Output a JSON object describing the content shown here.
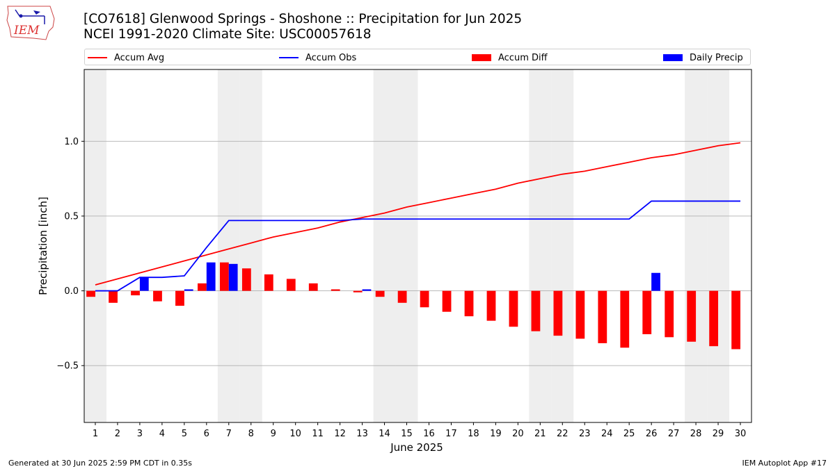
{
  "header": {
    "title_line1": "[CO7618] Glenwood Springs - Shoshone :: Precipitation for Jun 2025",
    "title_line2": "NCEI 1991-2020 Climate Site: USC00057618",
    "logo_text": "IEM"
  },
  "footer": {
    "generated": "Generated at 30 Jun 2025 2:59 PM CDT in 0.35s",
    "app": "IEM Autoplot App #17"
  },
  "colors": {
    "accum_avg": "#ff0000",
    "accum_obs": "#0000ff",
    "accum_diff": "#ff0000",
    "daily_precip": "#0000ff",
    "weekend_shade": "#eeeeee",
    "grid": "#b0b0b0"
  },
  "chart_data": {
    "type": "bar",
    "xlabel": "June 2025",
    "ylabel": "Precipitation [inch]",
    "ylim": [
      -0.88,
      1.48
    ],
    "yticks": [
      -0.5,
      0.0,
      0.5,
      1.0
    ],
    "ytick_labels": [
      "−0.5",
      "0.0",
      "0.5",
      "1.0"
    ],
    "grid": "horizontal",
    "legend_placement": "top, above plot",
    "x": [
      1,
      2,
      3,
      4,
      5,
      6,
      7,
      8,
      9,
      10,
      11,
      12,
      13,
      14,
      15,
      16,
      17,
      18,
      19,
      20,
      21,
      22,
      23,
      24,
      25,
      26,
      27,
      28,
      29,
      30
    ],
    "weekend_days": [
      1,
      7,
      8,
      14,
      15,
      21,
      22,
      28,
      29
    ],
    "series": [
      {
        "name": "Accum Avg",
        "kind": "line",
        "values": [
          0.04,
          0.08,
          0.12,
          0.16,
          0.2,
          0.24,
          0.28,
          0.32,
          0.36,
          0.39,
          0.42,
          0.46,
          0.49,
          0.52,
          0.56,
          0.59,
          0.62,
          0.65,
          0.68,
          0.72,
          0.75,
          0.78,
          0.8,
          0.83,
          0.86,
          0.89,
          0.91,
          0.94,
          0.97,
          0.99
        ]
      },
      {
        "name": "Accum Obs",
        "kind": "line",
        "values": [
          0.0,
          0.0,
          0.09,
          0.09,
          0.1,
          0.29,
          0.47,
          0.47,
          0.47,
          0.47,
          0.47,
          0.47,
          0.48,
          0.48,
          0.48,
          0.48,
          0.48,
          0.48,
          0.48,
          0.48,
          0.48,
          0.48,
          0.48,
          0.48,
          0.48,
          0.6,
          0.6,
          0.6,
          0.6,
          0.6
        ]
      },
      {
        "name": "Accum Diff",
        "kind": "bar",
        "values": [
          -0.04,
          -0.08,
          -0.03,
          -0.07,
          -0.1,
          0.05,
          0.19,
          0.15,
          0.11,
          0.08,
          0.05,
          0.01,
          -0.01,
          -0.04,
          -0.08,
          -0.11,
          -0.14,
          -0.17,
          -0.2,
          -0.24,
          -0.27,
          -0.3,
          -0.32,
          -0.35,
          -0.38,
          -0.29,
          -0.31,
          -0.34,
          -0.37,
          -0.39
        ]
      },
      {
        "name": "Daily Precip",
        "kind": "bar",
        "values": [
          0.0,
          0.0,
          0.09,
          0.0,
          0.01,
          0.19,
          0.18,
          0.0,
          0.0,
          0.0,
          0.0,
          0.0,
          0.01,
          0.0,
          0.0,
          0.0,
          0.0,
          0.0,
          0.0,
          0.0,
          0.0,
          0.0,
          0.0,
          0.0,
          0.0,
          0.12,
          0.0,
          0.0,
          0.0,
          0.0
        ]
      }
    ]
  }
}
